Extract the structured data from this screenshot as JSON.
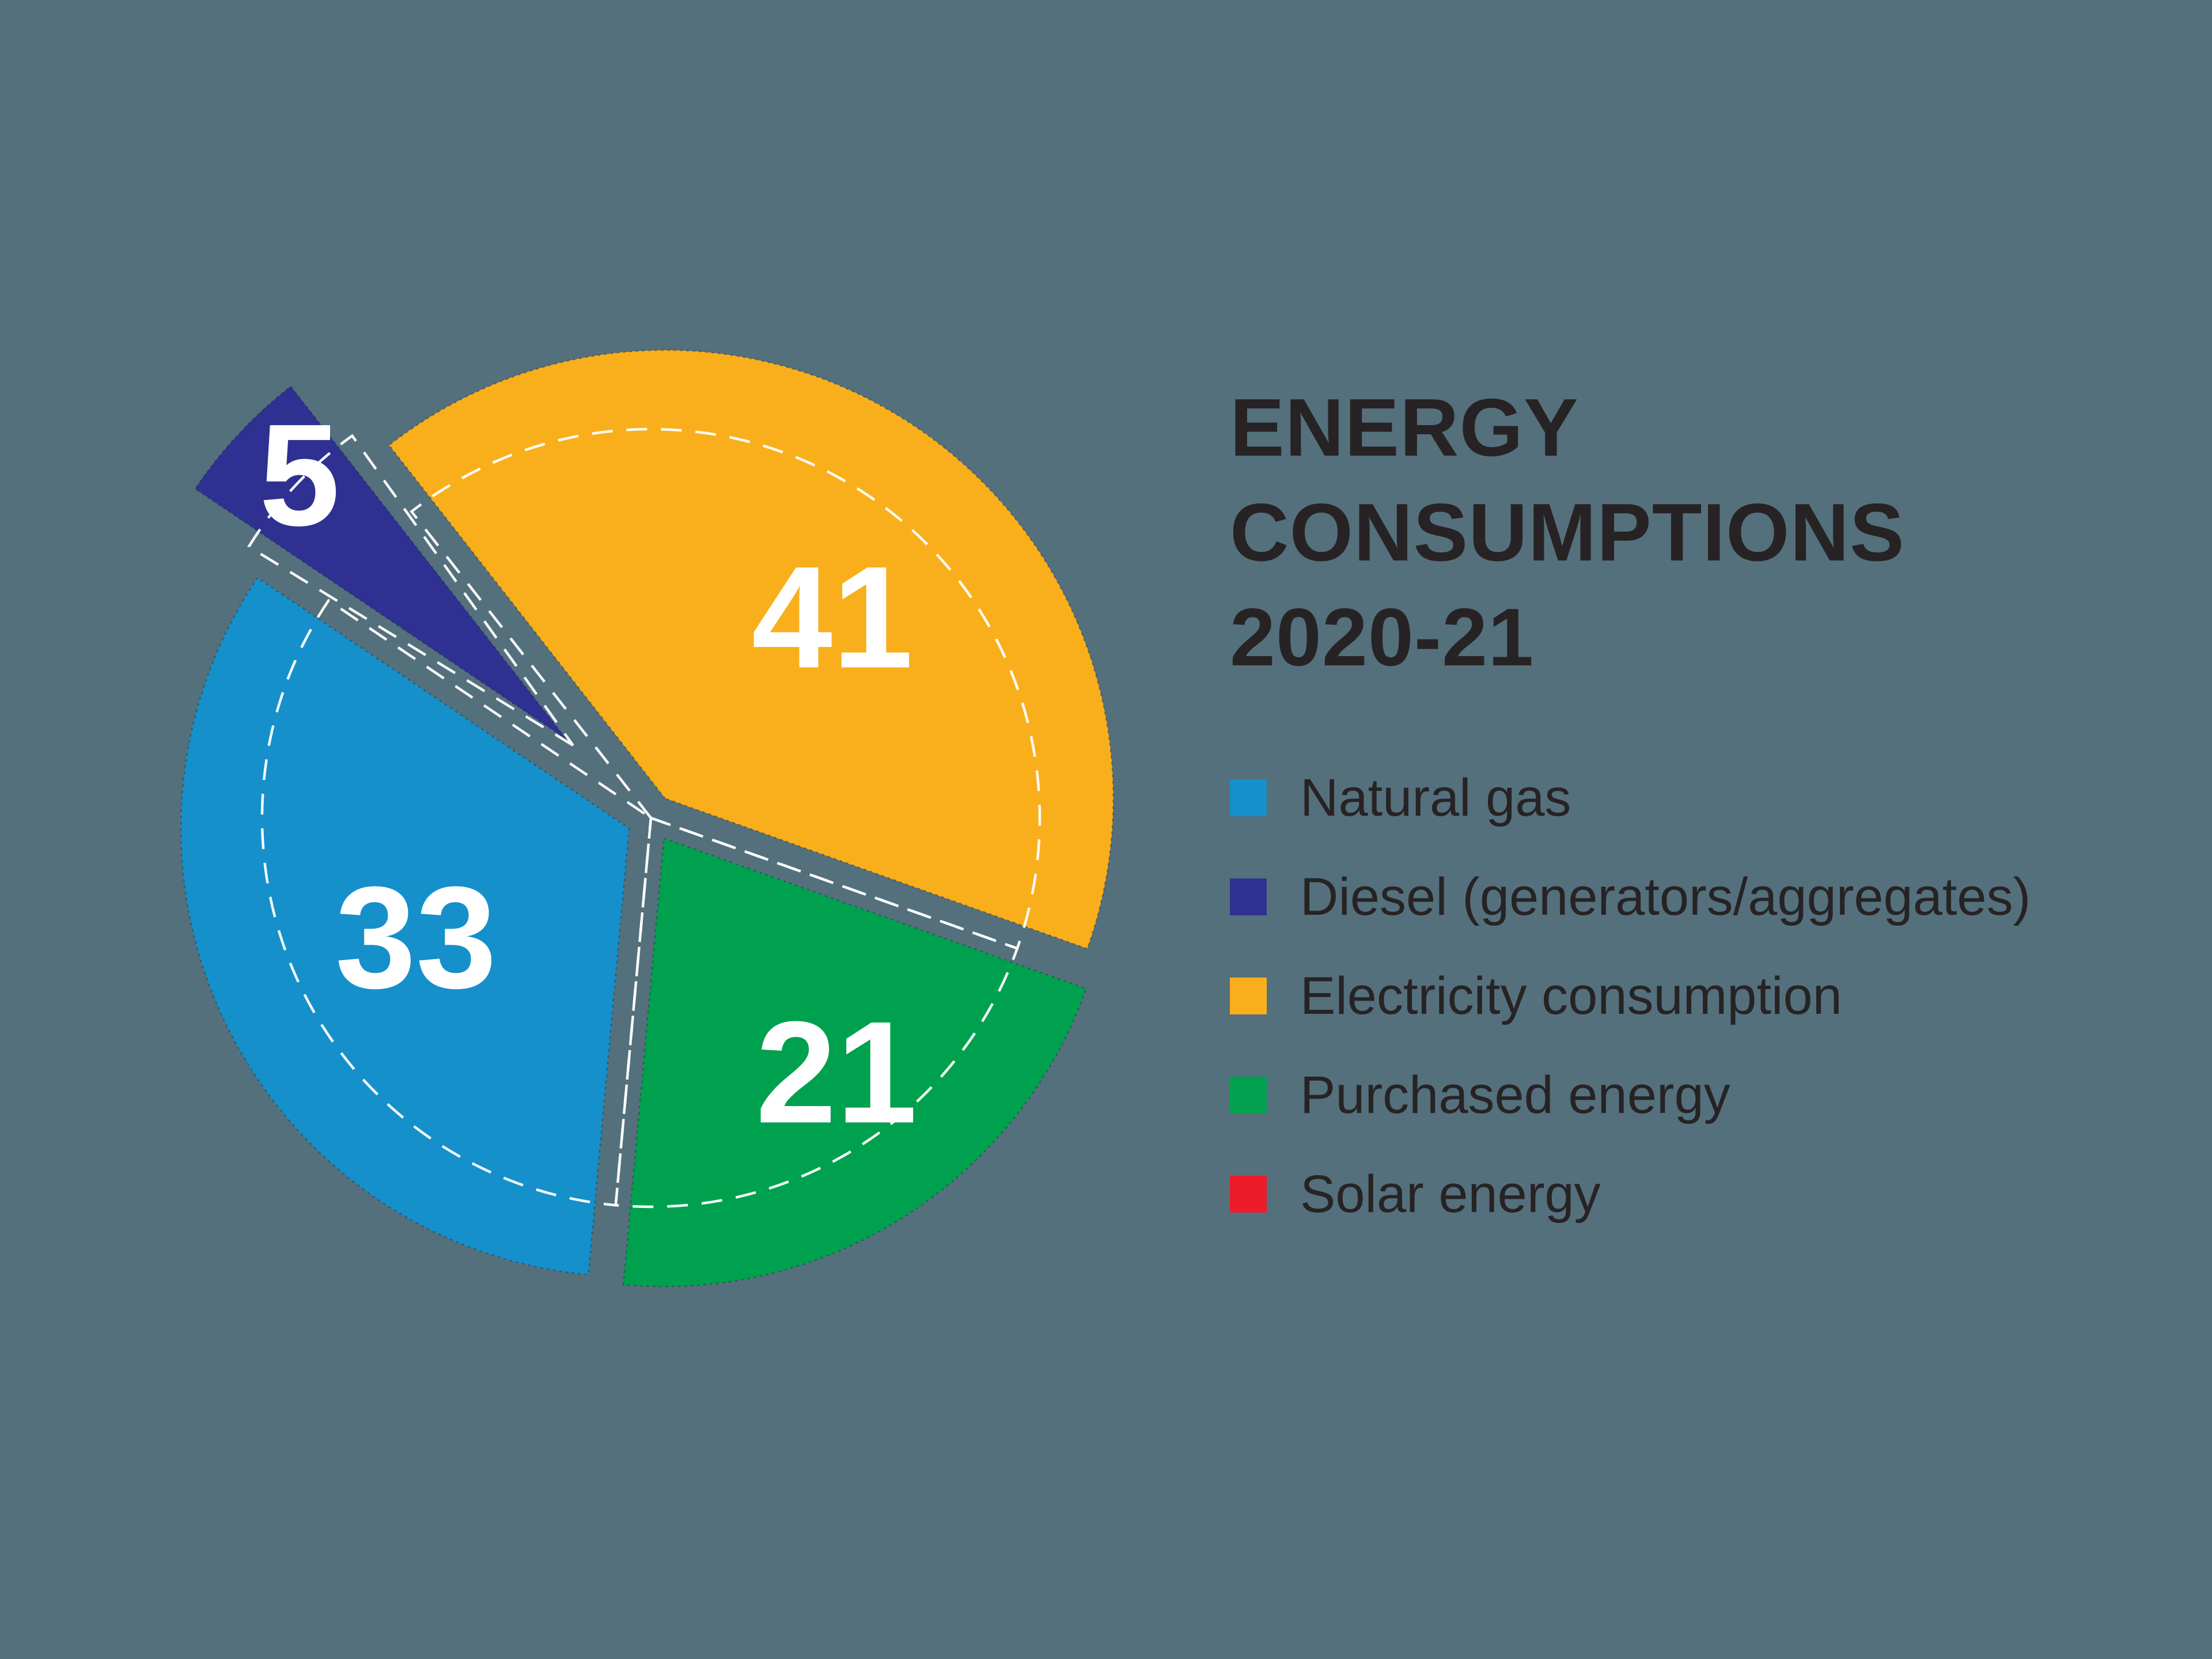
{
  "background_color": "#54707C",
  "text_color": "#272324",
  "title": {
    "lines": [
      "ENERGY",
      "CONSUMPTIONS",
      "2020-21"
    ]
  },
  "chart_data": {
    "type": "pie",
    "title": "ENERGY CONSUMPTIONS 2020-21",
    "unit": "percent",
    "style": "exploded, dashed ghost outlines, white value labels inside slices",
    "start_angle_deg": 304,
    "clockwise": true,
    "geometry": {
      "center": [
        1130,
        1420
      ],
      "radius": 778
    },
    "label_color": "#FFFFFF",
    "label_font_size": 252,
    "slices": [
      {
        "label": "Diesel (generators/aggregates)",
        "value": 5,
        "color": "#2E3192",
        "explode": 200,
        "label_pos": [
          520,
          825
        ]
      },
      {
        "label": "Electricity consumption",
        "value": 41,
        "color": "#F9AF1B",
        "explode": 42,
        "label_pos": [
          1445,
          1072
        ]
      },
      {
        "label": "Purchased energy",
        "value": 21,
        "color": "#00A14E",
        "explode": 42,
        "label_pos": [
          1452,
          1862
        ]
      },
      {
        "label": "Natural gas",
        "value": 33,
        "color": "#1590CB",
        "explode": 42,
        "label_pos": [
          722,
          1628
        ]
      },
      {
        "label": "Solar energy",
        "value": 0,
        "color": "#EC1C2A",
        "explode": 0,
        "label_pos": null
      }
    ],
    "legend_position": "right"
  },
  "legend": {
    "items": [
      {
        "label": "Natural gas",
        "color": "#1590CB"
      },
      {
        "label": "Diesel (generators/aggregates)",
        "color": "#2E3192"
      },
      {
        "label": "Electricity consumption",
        "color": "#F9AF1B"
      },
      {
        "label": "Purchased energy",
        "color": "#00A14E"
      },
      {
        "label": "Solar energy",
        "color": "#EC1C2A"
      }
    ]
  }
}
